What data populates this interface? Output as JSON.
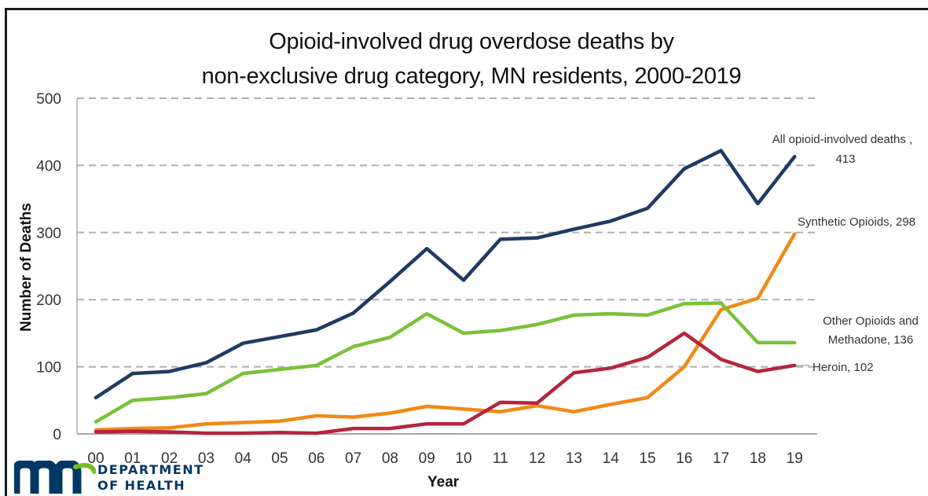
{
  "chart_data": {
    "type": "line",
    "title_line1": "Opioid-involved drug overdose deaths by",
    "title_line2": "non-exclusive drug category, MN residents, 2000-2019",
    "xlabel": "Year",
    "ylabel": "Number of Deaths",
    "ylim": [
      0,
      500
    ],
    "yticks": [
      0,
      100,
      200,
      300,
      400,
      500
    ],
    "grid": true,
    "categories": [
      "00",
      "01",
      "02",
      "03",
      "04",
      "05",
      "06",
      "07",
      "08",
      "09",
      "10",
      "11",
      "12",
      "13",
      "14",
      "15",
      "16",
      "17",
      "18",
      "19"
    ],
    "series": [
      {
        "name": "All opioid-involved deaths",
        "color": "#1f3b63",
        "label_lines": [
          "All opioid-involved deaths ,",
          "413"
        ],
        "values": [
          54,
          90,
          93,
          106,
          135,
          145,
          155,
          180,
          227,
          276,
          229,
          290,
          292,
          305,
          317,
          336,
          395,
          422,
          343,
          413
        ]
      },
      {
        "name": "Synthetic Opioids",
        "color": "#f08a16",
        "label_lines": [
          "Synthetic Opioids, 298"
        ],
        "values": [
          6,
          8,
          9,
          15,
          17,
          19,
          27,
          25,
          31,
          41,
          37,
          33,
          42,
          33,
          44,
          54,
          100,
          185,
          202,
          298
        ]
      },
      {
        "name": "Other Opioids and Methadone",
        "color": "#78c239",
        "label_lines": [
          "Other Opioids and",
          "Methadone, 136"
        ],
        "values": [
          18,
          50,
          54,
          60,
          90,
          96,
          102,
          130,
          144,
          179,
          150,
          154,
          163,
          177,
          179,
          177,
          194,
          195,
          136,
          136
        ]
      },
      {
        "name": "Heroin",
        "color": "#b5243d",
        "label_lines": [
          "Heroin, 102"
        ],
        "values": [
          3,
          4,
          3,
          1,
          1,
          2,
          1,
          8,
          8,
          15,
          15,
          47,
          46,
          91,
          98,
          114,
          150,
          111,
          93,
          102
        ]
      }
    ]
  },
  "logo": {
    "line1": "DEPARTMENT",
    "line2": "OF HEALTH",
    "mark_color": "#003865",
    "accent_color": "#78be21"
  }
}
